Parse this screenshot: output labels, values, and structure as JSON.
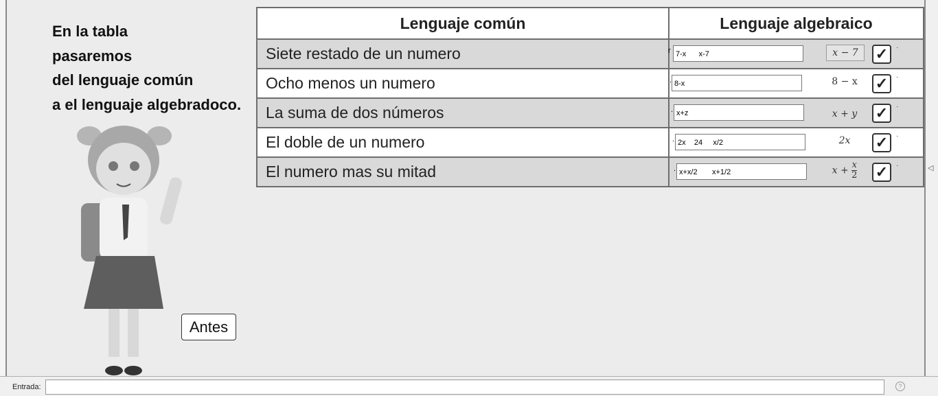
{
  "intro": {
    "lines": [
      "En la tabla",
      "pasaremos",
      "del lenguaje común",
      "a el lenguaje algebradoco."
    ]
  },
  "table": {
    "headers": [
      "Lenguaje común",
      "Lenguaje algebraico"
    ],
    "rows": [
      {
        "common": "Siete restado de un numero",
        "prefix": "r",
        "input": "7-x      x-7",
        "math": "x − 7",
        "checked": true
      },
      {
        "common": "Ocho menos un numero",
        "prefix": ".",
        "input": "8-x",
        "math": "8 − x",
        "checked": true
      },
      {
        "common": "La suma de dos números",
        "prefix": ".",
        "input": "x+z",
        "math": "x + y",
        "checked": true
      },
      {
        "common": "El doble de un numero",
        "prefix": ".",
        "input": "2x    24     x/2",
        "math": "2x",
        "checked": true
      },
      {
        "common": "El numero mas su mitad",
        "prefix": ".",
        "input": "x+x/2       x+1/2",
        "math_base": "x + ",
        "math_num": "x",
        "math_den": "2",
        "checked": true
      }
    ],
    "check_glyph": "✓"
  },
  "antes_button": "Antes",
  "input_bar": {
    "label": "Entrada:",
    "value": "",
    "help_glyph": "?"
  },
  "collapse_glyph": "◁"
}
